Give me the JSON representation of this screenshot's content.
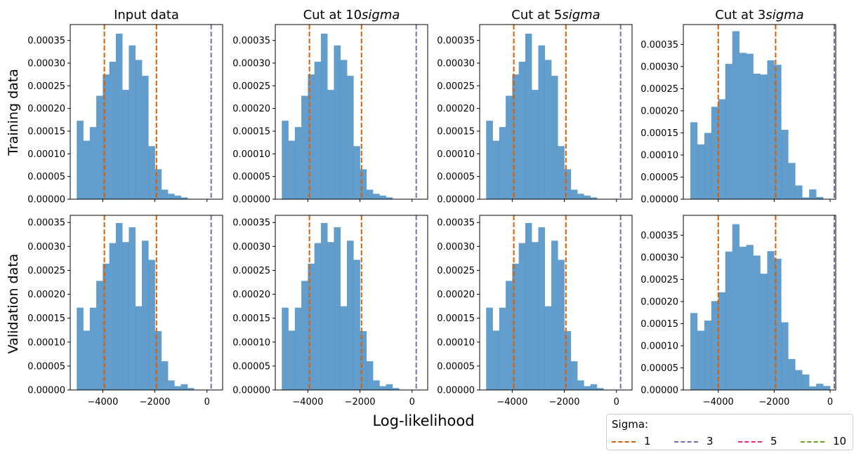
{
  "figure": {
    "xlabel": "Log-likelihood",
    "row_labels": [
      "Training data",
      "Validation data"
    ],
    "column_titles": [
      "Input data",
      "Cut at 10$sigma$",
      "Cut at 5$sigma$",
      "Cut at 3$sigma$"
    ],
    "column_title_parts": [
      {
        "plain": "Input data",
        "italic": ""
      },
      {
        "plain": "Cut at 10",
        "italic": "sigma"
      },
      {
        "plain": "Cut at 5",
        "italic": "sigma"
      },
      {
        "plain": "Cut at 3",
        "italic": "sigma"
      }
    ]
  },
  "legend": {
    "title": "Sigma:",
    "items": [
      {
        "label": "1",
        "color": "#d95f02"
      },
      {
        "label": "3",
        "color": "#7570b3"
      },
      {
        "label": "5",
        "color": "#e7298a"
      },
      {
        "label": "10",
        "color": "#66a61e"
      }
    ]
  },
  "colors": {
    "bars": "#4c8fc4",
    "sigma1": "#d95f02",
    "sigma3": "#7570b3"
  },
  "chart_data": [
    {
      "type": "bar",
      "panel": "Training data / Input data",
      "title": "Input data",
      "ylabel": "Training data",
      "bin_start": -5000,
      "bin_width": 250,
      "xlim": [
        -5250,
        600
      ],
      "ylim": [
        0,
        0.000385
      ],
      "xticks": [
        -4000,
        -2000,
        0
      ],
      "yticks": [
        0,
        5e-05,
        0.0001,
        0.00015,
        0.0002,
        0.00025,
        0.0003,
        0.00035
      ],
      "values": [
        0.000173,
        0.000129,
        0.000159,
        0.000228,
        0.000275,
        0.000303,
        0.000365,
        0.000241,
        0.000339,
        0.000307,
        0.000272,
        0.000117,
        6.6e-05,
        2.1e-05,
        1.2e-05,
        8e-06,
        4e-06
      ],
      "vlines": [
        {
          "sigma": "1",
          "x": -3940
        },
        {
          "sigma": "1",
          "x": -1940
        },
        {
          "sigma": "3",
          "x": 160
        }
      ]
    },
    {
      "type": "bar",
      "panel": "Training data / Cut at 10sigma",
      "title": "Cut at 10sigma",
      "ylabel": "",
      "bin_start": -5000,
      "bin_width": 250,
      "xlim": [
        -5250,
        600
      ],
      "ylim": [
        0,
        0.000385
      ],
      "xticks": [
        -4000,
        -2000,
        0
      ],
      "yticks": [
        0,
        5e-05,
        0.0001,
        0.00015,
        0.0002,
        0.00025,
        0.0003,
        0.00035
      ],
      "values": [
        0.000173,
        0.000129,
        0.000159,
        0.000228,
        0.000275,
        0.000303,
        0.000365,
        0.000241,
        0.000339,
        0.000307,
        0.000272,
        0.000117,
        6.6e-05,
        2.1e-05,
        1.2e-05,
        8e-06,
        4e-06
      ],
      "vlines": [
        {
          "sigma": "1",
          "x": -3940
        },
        {
          "sigma": "1",
          "x": -1940
        },
        {
          "sigma": "3",
          "x": 160
        }
      ]
    },
    {
      "type": "bar",
      "panel": "Training data / Cut at 5sigma",
      "title": "Cut at 5sigma",
      "ylabel": "",
      "bin_start": -5000,
      "bin_width": 250,
      "xlim": [
        -5250,
        600
      ],
      "ylim": [
        0,
        0.000385
      ],
      "xticks": [
        -4000,
        -2000,
        0
      ],
      "yticks": [
        0,
        5e-05,
        0.0001,
        0.00015,
        0.0002,
        0.00025,
        0.0003,
        0.00035
      ],
      "values": [
        0.000173,
        0.000129,
        0.000159,
        0.000228,
        0.000275,
        0.000303,
        0.000365,
        0.000241,
        0.000339,
        0.000307,
        0.000272,
        0.000117,
        6.6e-05,
        2.1e-05,
        1.2e-05,
        8e-06,
        4e-06
      ],
      "vlines": [
        {
          "sigma": "1",
          "x": -3940
        },
        {
          "sigma": "1",
          "x": -1940
        },
        {
          "sigma": "3",
          "x": 160
        }
      ]
    },
    {
      "type": "bar",
      "panel": "Training data / Cut at 3sigma",
      "title": "Cut at 3sigma",
      "ylabel": "",
      "bin_start": -5000,
      "bin_width": 250,
      "xlim": [
        -5250,
        200
      ],
      "ylim": [
        0,
        0.000395
      ],
      "xticks": [
        -4000,
        -2000,
        0
      ],
      "yticks": [
        0,
        5e-05,
        0.0001,
        0.00015,
        0.0002,
        0.00025,
        0.0003,
        0.00035
      ],
      "values": [
        0.000174,
        0.000124,
        0.00015,
        0.000209,
        0.000226,
        0.000306,
        0.00038,
        0.000331,
        0.000329,
        0.000284,
        0.000282,
        0.000314,
        0.000304,
        0.000157,
        8.2e-05,
        3.1e-05,
        4e-06,
        2.2e-05,
        5e-06
      ],
      "vlines": [
        {
          "sigma": "1",
          "x": -4000
        },
        {
          "sigma": "1",
          "x": -1950
        },
        {
          "sigma": "3",
          "x": 150
        }
      ]
    },
    {
      "type": "bar",
      "panel": "Validation data / Input data",
      "title": "",
      "ylabel": "Validation data",
      "bin_start": -5000,
      "bin_width": 250,
      "xlim": [
        -5250,
        600
      ],
      "ylim": [
        0,
        0.000365
      ],
      "xticks": [
        -4000,
        -2000,
        0
      ],
      "yticks": [
        0,
        5e-05,
        0.0001,
        0.00015,
        0.0002,
        0.00025,
        0.0003,
        0.00035
      ],
      "values": [
        0.000172,
        0.000124,
        0.000172,
        0.000228,
        0.000264,
        0.000307,
        0.000349,
        0.000309,
        0.00034,
        0.000175,
        0.000312,
        0.000272,
        0.000123,
        6e-05,
        2e-05,
        8e-06,
        1.2e-05,
        4e-06
      ],
      "vlines": [
        {
          "sigma": "1",
          "x": -3940
        },
        {
          "sigma": "1",
          "x": -1940
        },
        {
          "sigma": "3",
          "x": 160
        }
      ]
    },
    {
      "type": "bar",
      "panel": "Validation data / Cut at 10sigma",
      "title": "",
      "ylabel": "",
      "bin_start": -5000,
      "bin_width": 250,
      "xlim": [
        -5250,
        600
      ],
      "ylim": [
        0,
        0.000365
      ],
      "xticks": [
        -4000,
        -2000,
        0
      ],
      "yticks": [
        0,
        5e-05,
        0.0001,
        0.00015,
        0.0002,
        0.00025,
        0.0003,
        0.00035
      ],
      "values": [
        0.000172,
        0.000124,
        0.000172,
        0.000228,
        0.000264,
        0.000307,
        0.000349,
        0.000309,
        0.00034,
        0.000175,
        0.000312,
        0.000272,
        0.000123,
        6e-05,
        2e-05,
        8e-06,
        1.2e-05,
        4e-06
      ],
      "vlines": [
        {
          "sigma": "1",
          "x": -3940
        },
        {
          "sigma": "1",
          "x": -1940
        },
        {
          "sigma": "3",
          "x": 160
        }
      ]
    },
    {
      "type": "bar",
      "panel": "Validation data / Cut at 5sigma",
      "title": "",
      "ylabel": "",
      "bin_start": -5000,
      "bin_width": 250,
      "xlim": [
        -5250,
        600
      ],
      "ylim": [
        0,
        0.000365
      ],
      "xticks": [
        -4000,
        -2000,
        0
      ],
      "yticks": [
        0,
        5e-05,
        0.0001,
        0.00015,
        0.0002,
        0.00025,
        0.0003,
        0.00035
      ],
      "values": [
        0.000172,
        0.000124,
        0.000172,
        0.000228,
        0.000264,
        0.000307,
        0.000349,
        0.000309,
        0.00034,
        0.000175,
        0.000312,
        0.000272,
        0.000123,
        6e-05,
        2e-05,
        8e-06,
        1.2e-05,
        4e-06
      ],
      "vlines": [
        {
          "sigma": "1",
          "x": -3940
        },
        {
          "sigma": "1",
          "x": -1940
        },
        {
          "sigma": "3",
          "x": 160
        }
      ]
    },
    {
      "type": "bar",
      "panel": "Validation data / Cut at 3sigma",
      "title": "",
      "ylabel": "",
      "bin_start": -5000,
      "bin_width": 250,
      "xlim": [
        -5250,
        200
      ],
      "ylim": [
        0,
        0.000395
      ],
      "xticks": [
        -4000,
        -2000,
        0
      ],
      "yticks": [
        0,
        5e-05,
        0.0001,
        0.00015,
        0.0002,
        0.00025,
        0.0003,
        0.00035
      ],
      "values": [
        0.000174,
        0.000134,
        0.000157,
        0.000201,
        0.000221,
        0.000313,
        0.000375,
        0.000324,
        0.000328,
        0.000304,
        0.000263,
        0.000314,
        0.000297,
        0.000153,
        7e-05,
        4.5e-05,
        3.5e-05,
        8e-06,
        1.4e-05,
        9e-06
      ],
      "vlines": [
        {
          "sigma": "1",
          "x": -4000
        },
        {
          "sigma": "1",
          "x": -1950
        },
        {
          "sigma": "3",
          "x": 150
        }
      ]
    }
  ]
}
